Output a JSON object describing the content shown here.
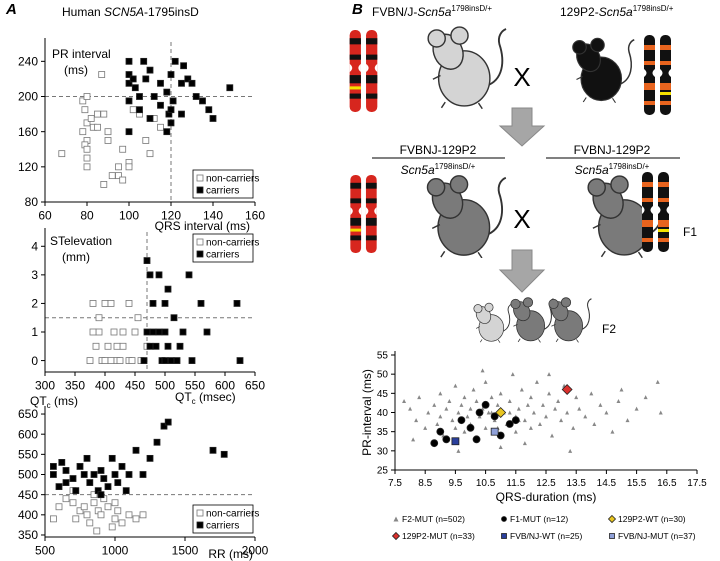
{
  "panels": [
    "A",
    "B"
  ],
  "panel_a_title": [
    "Human ",
    "SCN5A",
    "-1795insD"
  ],
  "diagram": {
    "parents": [
      [
        "FVBN/J-",
        "Scn5a",
        "1798insD/+"
      ],
      [
        "129P2-",
        "Scn5a",
        "1798insD/+"
      ]
    ],
    "crosses": [
      "X",
      "X"
    ],
    "f1_strain": [
      "FVBNJ-129P2",
      "FVBNJ-129P2"
    ],
    "f1_genotype": [
      [
        "Scn5a",
        "1798insD/+"
      ],
      [
        "Scn5a",
        "1798insD/+"
      ]
    ],
    "generations": [
      "F1",
      "F2"
    ]
  },
  "chart_data": [
    {
      "type": "scatter",
      "ylabel": [
        "PR interval",
        "(ms)"
      ],
      "xlabel": "QRS interval (ms)",
      "xlim": [
        60,
        160
      ],
      "xticks": [
        60,
        80,
        100,
        120,
        140,
        160
      ],
      "ylim": [
        80,
        262
      ],
      "yticks": [
        80,
        120,
        160,
        200,
        240
      ],
      "ref_lines": {
        "x": 120,
        "y": 200
      },
      "legend": "lower right",
      "series": [
        {
          "name": "non-carriers",
          "marker": "square",
          "open": true,
          "color": "#777777",
          "x": [
            68,
            78,
            80,
            79,
            80,
            78,
            80,
            79,
            80,
            80,
            82,
            83,
            85,
            87,
            88,
            90,
            90,
            92,
            95,
            95,
            97,
            97,
            100,
            100,
            102,
            105,
            108,
            110,
            112,
            115,
            80,
            85,
            88
          ],
          "values": [
            135,
            195,
            200,
            185,
            170,
            160,
            150,
            145,
            130,
            120,
            175,
            165,
            180,
            225,
            100,
            160,
            150,
            110,
            120,
            110,
            105,
            140,
            125,
            120,
            185,
            180,
            150,
            135,
            175,
            165,
            140,
            165,
            180
          ]
        },
        {
          "name": "carriers",
          "marker": "square",
          "open": false,
          "color": "#000000",
          "x": [
            100,
            100,
            100,
            100,
            102,
            103,
            105,
            105,
            107,
            108,
            110,
            110,
            112,
            115,
            115,
            118,
            119,
            120,
            120,
            120,
            121,
            122,
            125,
            126,
            128,
            130,
            132,
            135,
            138,
            140,
            148,
            100,
            118,
            125
          ],
          "values": [
            240,
            225,
            215,
            195,
            220,
            210,
            200,
            185,
            240,
            220,
            230,
            175,
            200,
            215,
            190,
            205,
            180,
            225,
            185,
            170,
            195,
            240,
            215,
            235,
            220,
            215,
            200,
            195,
            185,
            175,
            210,
            160,
            160,
            180
          ]
        }
      ]
    },
    {
      "type": "scatter",
      "ylabel": [
        "STelevation",
        "(mm)"
      ],
      "xlabel": [
        "QT",
        "c",
        " (msec)"
      ],
      "xlim": [
        300,
        650
      ],
      "xticks": [
        300,
        350,
        400,
        450,
        500,
        550,
        600,
        650
      ],
      "ylim": [
        -0.4,
        4.5
      ],
      "yticks": [
        0,
        1,
        2,
        3,
        4
      ],
      "ref_lines": {
        "x": 470,
        "y": 1.5
      },
      "legend": "upper right",
      "series": [
        {
          "name": "non-carriers",
          "marker": "square",
          "open": true,
          "color": "#777777",
          "x": [
            375,
            380,
            385,
            390,
            395,
            400,
            400,
            405,
            410,
            415,
            420,
            425,
            430,
            430,
            440,
            440,
            445,
            450,
            455,
            460,
            390,
            420,
            470,
            410,
            380
          ],
          "values": [
            0,
            2,
            0.5,
            1,
            0,
            2,
            0,
            0.5,
            0,
            1,
            0,
            0,
            0.5,
            1,
            2,
            0,
            0,
            1,
            1.5,
            0,
            1.5,
            0.5,
            0.5,
            2,
            1
          ]
        },
        {
          "name": "carriers",
          "marker": "square",
          "open": false,
          "color": "#000000",
          "x": [
            465,
            470,
            470,
            475,
            480,
            480,
            485,
            490,
            490,
            495,
            500,
            500,
            505,
            505,
            510,
            515,
            520,
            525,
            530,
            540,
            545,
            560,
            570,
            620,
            625,
            475,
            500
          ],
          "values": [
            0,
            3.5,
            1,
            3,
            2,
            1,
            0.5,
            1,
            3,
            0,
            2,
            1,
            2.5,
            0.5,
            0,
            1.5,
            0,
            0.5,
            1,
            3,
            0,
            2,
            1,
            2,
            0,
            0.5,
            0
          ]
        }
      ]
    },
    {
      "type": "scatter",
      "ylabel": [
        "QT",
        "c",
        " (ms)"
      ],
      "xlabel": "RR (ms)",
      "xlim": [
        500,
        2000
      ],
      "xticks": [
        500,
        1000,
        1500,
        2000
      ],
      "ylim": [
        345,
        660
      ],
      "yticks": [
        350,
        400,
        450,
        500,
        550,
        600,
        650
      ],
      "ref_lines": {
        "y": 450
      },
      "legend": "lower right",
      "series": [
        {
          "name": "non-carriers",
          "marker": "square",
          "open": true,
          "color": "#777777",
          "x": [
            560,
            600,
            650,
            700,
            720,
            750,
            780,
            800,
            820,
            850,
            870,
            880,
            900,
            920,
            950,
            980,
            1000,
            1020,
            1050,
            1100,
            1150,
            1200,
            1000,
            850,
            700
          ],
          "values": [
            390,
            420,
            440,
            430,
            390,
            410,
            420,
            400,
            380,
            430,
            360,
            410,
            400,
            440,
            420,
            370,
            390,
            410,
            380,
            400,
            390,
            400,
            430,
            450,
            460
          ]
        },
        {
          "name": "carriers",
          "marker": "square",
          "open": false,
          "color": "#000000",
          "x": [
            560,
            600,
            620,
            650,
            700,
            720,
            750,
            780,
            800,
            820,
            850,
            880,
            900,
            920,
            950,
            980,
            1000,
            1020,
            1050,
            1080,
            1100,
            1150,
            1200,
            1250,
            1300,
            1350,
            1380,
            1700,
            1780,
            560,
            650,
            900
          ],
          "values": [
            500,
            470,
            530,
            510,
            490,
            460,
            520,
            500,
            540,
            480,
            500,
            460,
            510,
            490,
            470,
            540,
            500,
            480,
            520,
            460,
            500,
            560,
            500,
            540,
            580,
            620,
            630,
            560,
            550,
            520,
            480,
            450
          ]
        }
      ]
    },
    {
      "type": "scatter",
      "ylabel": "PR-interval (ms)",
      "xlabel": "QRS-duration (ms)",
      "xlim": [
        7.5,
        17.5
      ],
      "xticks": [
        7.5,
        8.5,
        9.5,
        10.5,
        11.5,
        12.5,
        13.5,
        14.5,
        15.5,
        16.5,
        17.5
      ],
      "ylim": [
        25,
        55
      ],
      "yticks": [
        25,
        30,
        35,
        40,
        45,
        50,
        55
      ],
      "legend": "below",
      "series": [
        {
          "name": "F2-MUT (n=502)",
          "marker": "triangle",
          "open": false,
          "color": "#888888",
          "x": [
            8.0,
            8.2,
            8.3,
            8.5,
            8.6,
            8.8,
            8.9,
            9.0,
            9.0,
            9.1,
            9.2,
            9.3,
            9.4,
            9.5,
            9.5,
            9.6,
            9.7,
            9.8,
            9.8,
            9.9,
            10.0,
            10.0,
            10.1,
            10.2,
            10.2,
            10.3,
            10.4,
            10.5,
            10.5,
            10.6,
            10.7,
            10.8,
            10.9,
            11.0,
            11.0,
            11.1,
            11.2,
            11.3,
            11.4,
            11.5,
            11.5,
            11.6,
            11.7,
            11.8,
            11.9,
            12.0,
            12.0,
            12.1,
            12.2,
            12.3,
            12.4,
            12.5,
            12.6,
            12.7,
            12.8,
            12.9,
            13.0,
            13.1,
            13.2,
            13.4,
            13.5,
            13.6,
            13.8,
            14.0,
            14.1,
            14.3,
            14.5,
            14.7,
            14.9,
            15.2,
            15.5,
            15.8,
            16.2,
            16.3,
            7.8,
            8.1,
            9.6,
            10.4,
            11.8,
            12.6,
            13.3,
            15.0,
            10.9,
            11.3,
            10.7,
            11.6
          ],
          "values": [
            41,
            38,
            44,
            36,
            40,
            42,
            37,
            45,
            39,
            34,
            41,
            43,
            38,
            36,
            47,
            40,
            42,
            35,
            44,
            39,
            41,
            37,
            46,
            43,
            33,
            39,
            41,
            48,
            36,
            40,
            44,
            38,
            42,
            31,
            45,
            40,
            37,
            43,
            50,
            39,
            35,
            41,
            46,
            38,
            42,
            36,
            44,
            40,
            48,
            37,
            42,
            39,
            45,
            34,
            41,
            43,
            38,
            47,
            40,
            36,
            44,
            41,
            39,
            45,
            37,
            42,
            40,
            35,
            43,
            38,
            41,
            44,
            48,
            40,
            43,
            33,
            30,
            51,
            32,
            50,
            30,
            46,
            36,
            40,
            40,
            38
          ]
        },
        {
          "name": "F1-MUT (n=12)",
          "marker": "circle",
          "open": false,
          "color": "#000000",
          "x": [
            8.8,
            9.2,
            9.7,
            10.0,
            10.3,
            10.8,
            11.0,
            11.3,
            10.5,
            9.0,
            11.5,
            10.2
          ],
          "values": [
            32,
            33,
            38,
            36,
            40,
            39,
            34,
            37,
            42,
            35,
            38,
            33
          ]
        },
        {
          "name": "129P2-WT (n=30)",
          "marker": "diamond",
          "open": false,
          "color": "#e8c520",
          "x": [
            11.0
          ],
          "values": [
            40
          ]
        },
        {
          "name": "129P2-MUT (n=33)",
          "marker": "diamond",
          "open": false,
          "color": "#d9302c",
          "x": [
            13.2
          ],
          "values": [
            46
          ]
        },
        {
          "name": "FVB/NJ-WT (n=25)",
          "marker": "square",
          "open": false,
          "color": "#2a3f9c",
          "x": [
            9.5
          ],
          "values": [
            32.5
          ]
        },
        {
          "name": "FVB/NJ-MUT (n=37)",
          "marker": "square",
          "open": false,
          "color": "#8fa0d8",
          "x": [
            10.8
          ],
          "values": [
            35
          ]
        }
      ]
    }
  ]
}
